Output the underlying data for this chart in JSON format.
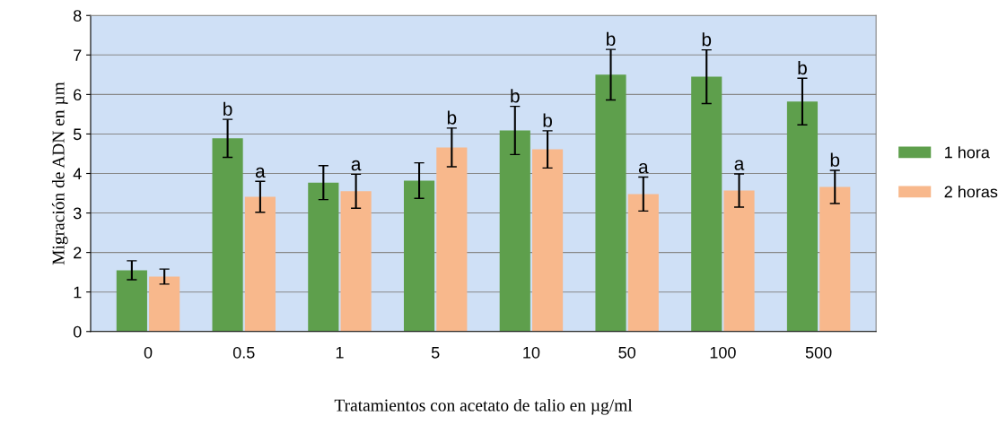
{
  "chart_data": {
    "type": "bar",
    "xlabel": "Tratamientos con acetato de talio en µg/ml",
    "ylabel": "Migración de ADN en µm",
    "categories": [
      "0",
      "0.5",
      "1",
      "5",
      "10",
      "50",
      "100",
      "500"
    ],
    "series": [
      {
        "name": "1 hora",
        "color": "#5e9f4c",
        "values": [
          1.55,
          4.89,
          3.77,
          3.82,
          5.09,
          6.5,
          6.45,
          5.82
        ],
        "errors": [
          0.24,
          0.48,
          0.43,
          0.45,
          0.61,
          0.64,
          0.68,
          0.59
        ]
      },
      {
        "name": "2 horas",
        "color": "#f8b88c",
        "values": [
          1.39,
          3.41,
          3.55,
          4.66,
          4.61,
          3.48,
          3.57,
          3.66
        ],
        "errors": [
          0.19,
          0.39,
          0.43,
          0.49,
          0.47,
          0.43,
          0.42,
          0.42
        ]
      }
    ],
    "ylim": [
      0,
      8
    ],
    "yticks": [
      0,
      1,
      2,
      3,
      4,
      5,
      6,
      7,
      8
    ],
    "grid": "y",
    "legend": "right",
    "annotations": [
      {
        "text": "b",
        "x": "0.5",
        "y": 4.89
      },
      {
        "text": "a",
        "x": "0.5",
        "y": 3.41
      },
      {
        "text": "a",
        "x": "1",
        "y": 3.55
      },
      {
        "text": "b",
        "x": "5",
        "y": 4.66
      },
      {
        "text": "b",
        "x": "10",
        "y": 5.09
      },
      {
        "text": "b",
        "x": "10",
        "y": 4.61
      },
      {
        "text": "b",
        "x": "50",
        "y": 6.5
      },
      {
        "text": "a",
        "x": "50",
        "y": 3.48
      },
      {
        "text": "b",
        "x": "100",
        "y": 6.45
      },
      {
        "text": "a",
        "x": "100",
        "y": 3.57
      },
      {
        "text": "b",
        "x": "500",
        "y": 5.82
      },
      {
        "text": "b",
        "x": "500",
        "y": 3.66
      }
    ]
  }
}
